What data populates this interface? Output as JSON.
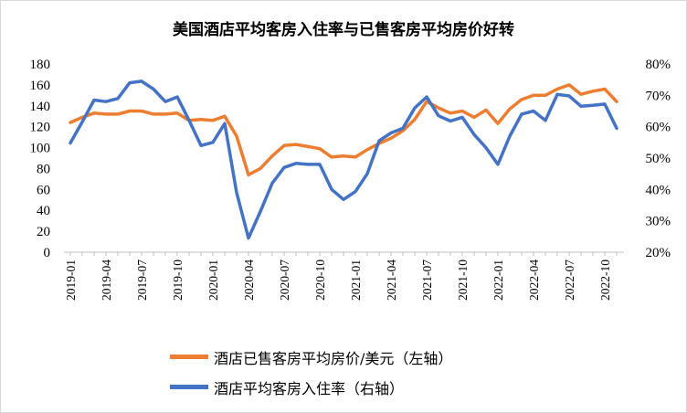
{
  "chart_data": {
    "type": "line",
    "title": "美国酒店平均客房入住率与已售客房平均房价好转",
    "x": [
      "2019-01",
      "2019-02",
      "2019-03",
      "2019-04",
      "2019-05",
      "2019-06",
      "2019-07",
      "2019-08",
      "2019-09",
      "2019-10",
      "2019-11",
      "2019-12",
      "2020-01",
      "2020-02",
      "2020-03",
      "2020-04",
      "2020-05",
      "2020-06",
      "2020-07",
      "2020-08",
      "2020-09",
      "2020-10",
      "2020-11",
      "2020-12",
      "2021-01",
      "2021-02",
      "2021-03",
      "2021-04",
      "2021-05",
      "2021-06",
      "2021-07",
      "2021-08",
      "2021-09",
      "2021-10",
      "2021-11",
      "2021-12",
      "2022-01",
      "2022-02",
      "2022-03",
      "2022-04",
      "2022-05",
      "2022-06",
      "2022-07",
      "2022-08",
      "2022-09",
      "2022-10",
      "2022-11"
    ],
    "x_tick_labels": [
      "2019-01",
      "2019-04",
      "2019-07",
      "2019-10",
      "2020-01",
      "2020-04",
      "2020-07",
      "2020-10",
      "2021-01",
      "2021-04",
      "2021-07",
      "2021-10",
      "2022-01",
      "2022-04",
      "2022-07",
      "2022-10"
    ],
    "y_left_ticks": [
      "0",
      "20",
      "40",
      "60",
      "80",
      "100",
      "120",
      "140",
      "160",
      "180"
    ],
    "y_right_ticks": [
      "20%",
      "30%",
      "40%",
      "50%",
      "60%",
      "70%",
      "80%"
    ],
    "ylim_left": [
      0,
      180
    ],
    "ylim_right": [
      20,
      80
    ],
    "grid": false,
    "legend_position": "bottom",
    "series": [
      {
        "name": "酒店已售客房平均房价/美元（左轴）",
        "axis": "left",
        "color": "#ED7D31",
        "values": [
          124,
          129,
          133,
          132,
          132,
          135,
          135,
          132,
          132,
          133,
          126,
          127,
          126,
          130,
          111,
          74,
          80,
          92,
          102,
          103,
          101,
          99,
          91,
          92,
          91,
          98,
          104,
          109,
          116,
          127,
          144,
          138,
          133,
          135,
          129,
          136,
          123,
          137,
          146,
          150,
          150,
          156,
          160,
          151,
          154,
          156,
          144
        ]
      },
      {
        "name": "酒店平均客房入住率（右轴）",
        "axis": "right",
        "color": "#4472C4",
        "values": [
          54.8,
          61.5,
          68.5,
          68,
          69,
          74,
          74.5,
          72,
          68,
          69.5,
          62,
          54,
          55,
          61,
          39,
          24.5,
          33,
          42,
          47,
          48.3,
          48,
          48,
          40,
          36.8,
          39.3,
          45,
          55.5,
          58,
          59.5,
          66,
          69.5,
          63.5,
          61.8,
          63,
          57.5,
          53.3,
          48,
          57,
          64,
          65,
          62,
          70.3,
          69.8,
          66.5,
          66.8,
          67.2,
          59.5
        ]
      }
    ]
  }
}
